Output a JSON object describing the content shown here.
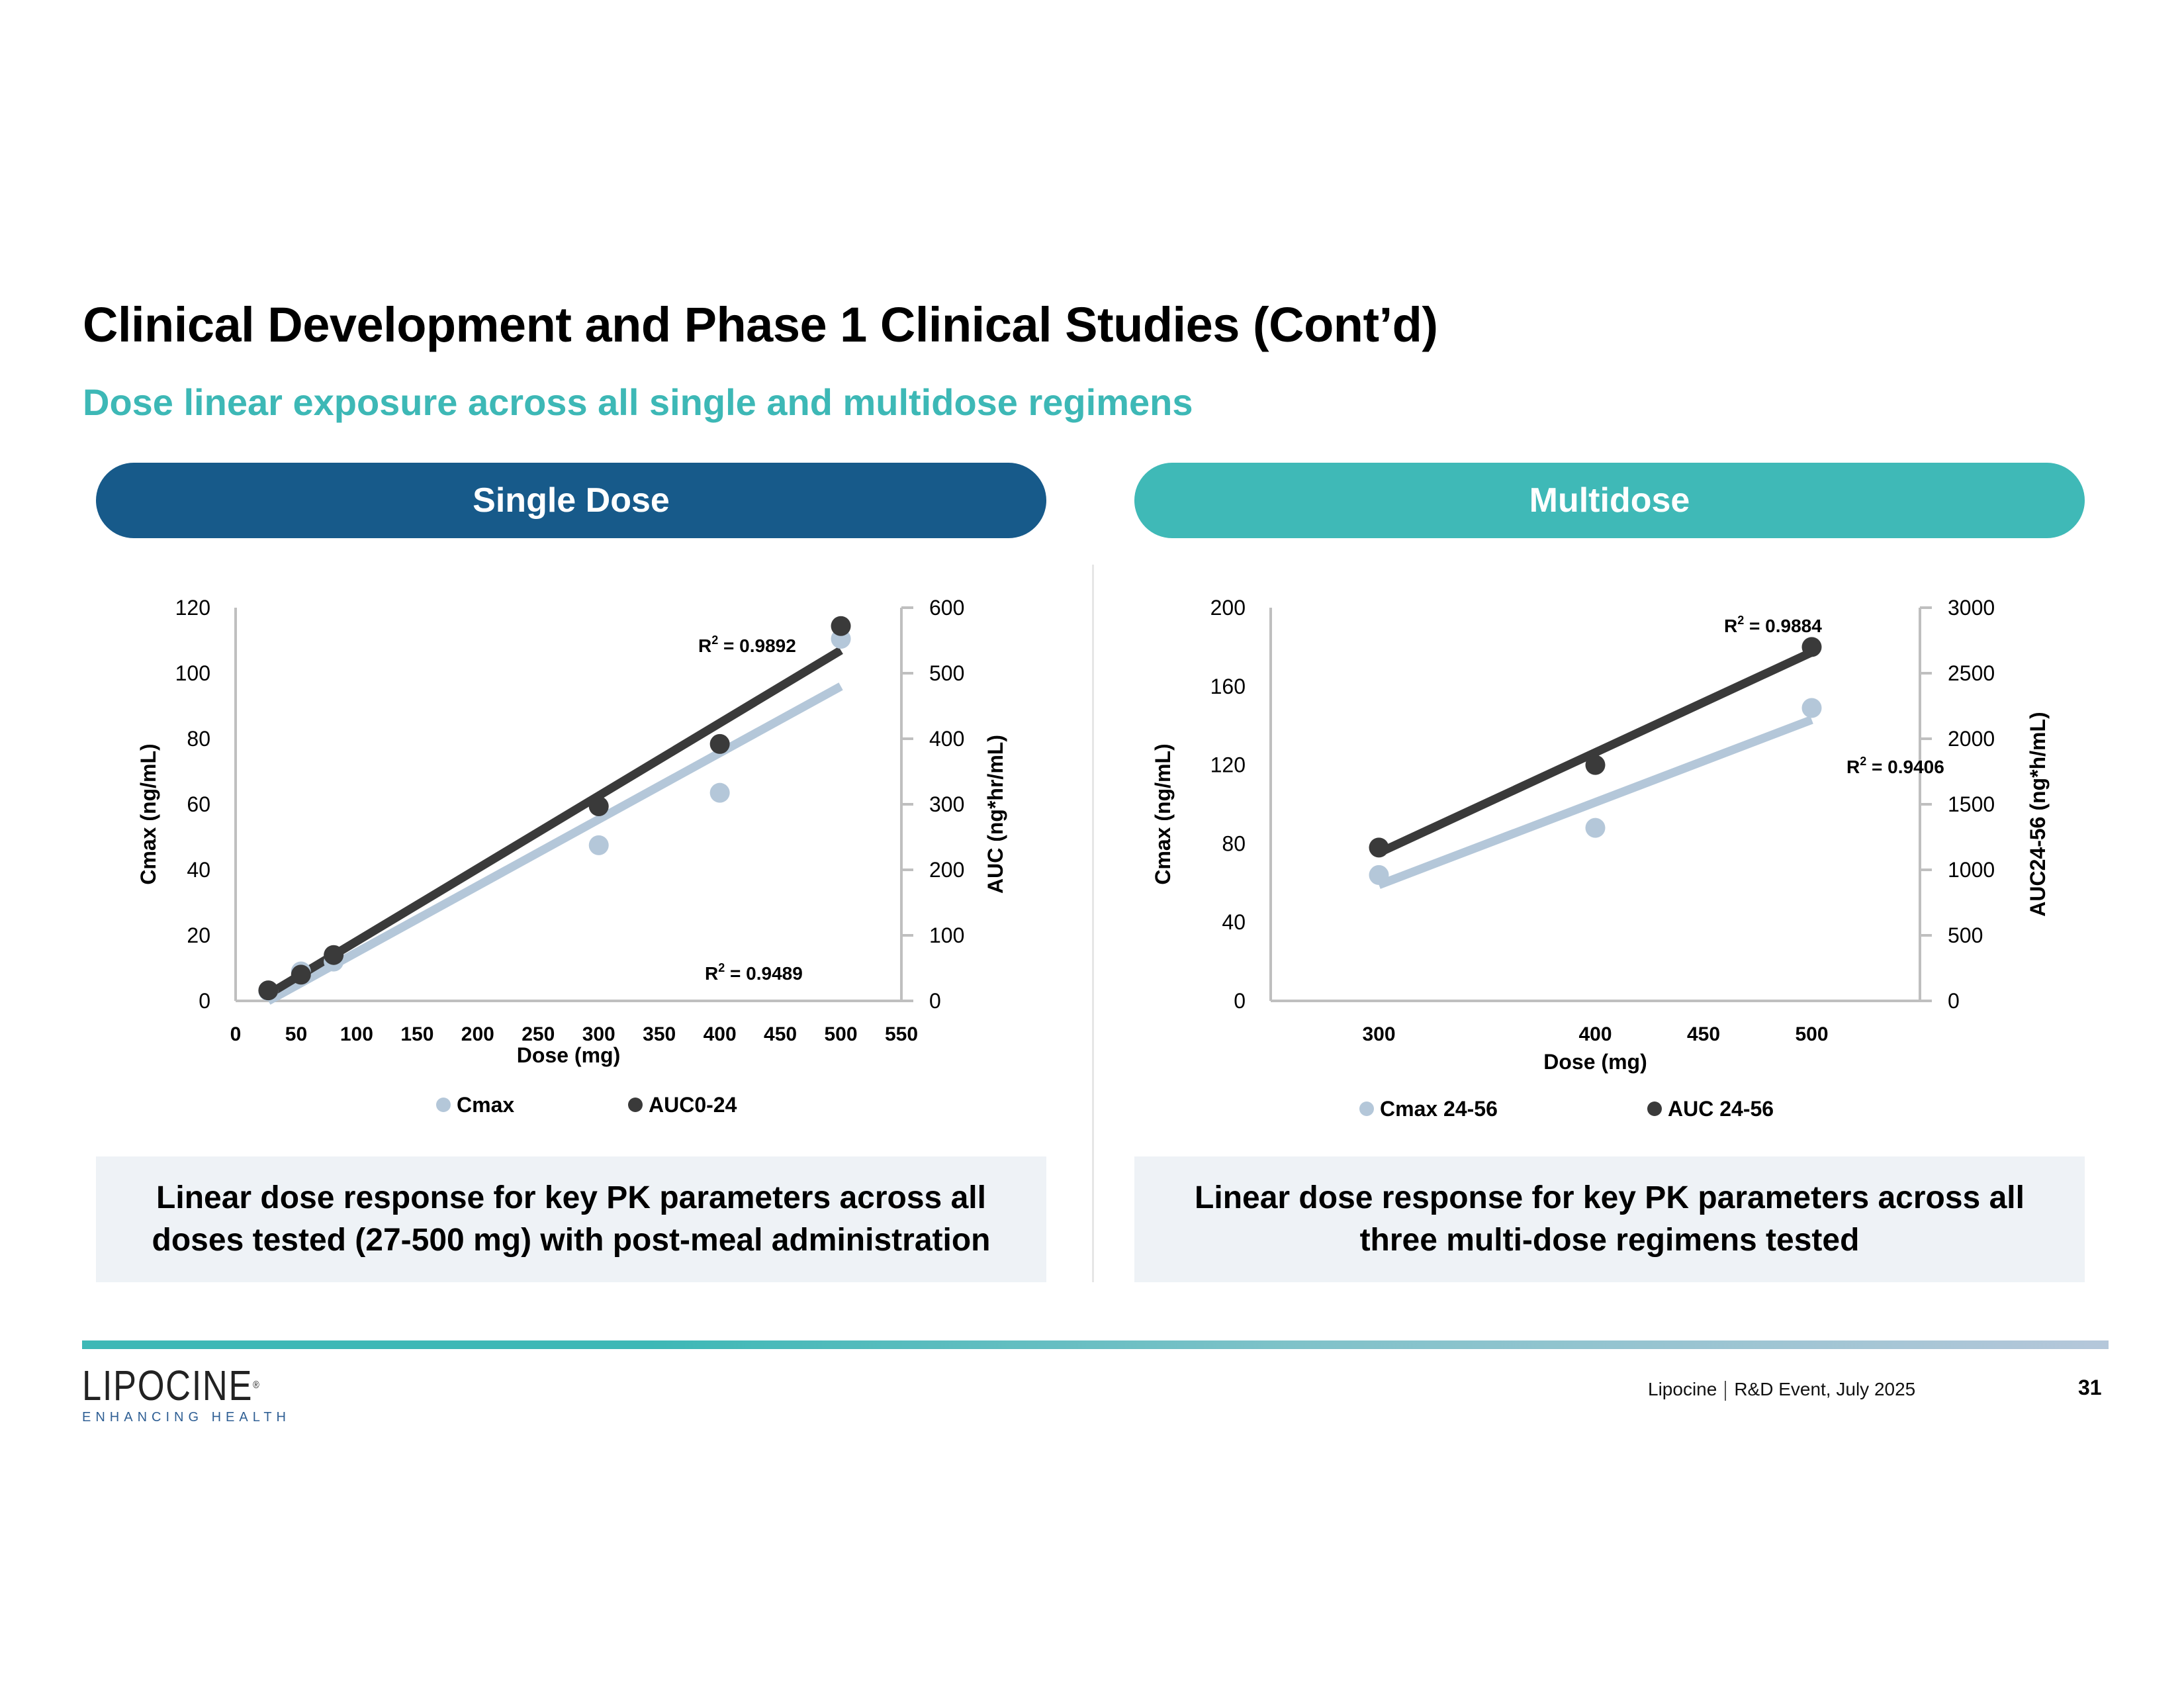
{
  "header": {
    "title": "Clinical Development and Phase 1 Clinical Studies (Cont’d)",
    "subtitle": "Dose linear exposure across all single and multidose regimens"
  },
  "panels": {
    "single": {
      "label": "Single Dose",
      "color": "#175a8a"
    },
    "multi": {
      "label": "Multidose",
      "color": "#3fb9b7"
    }
  },
  "captions": {
    "single": "Linear dose response for key PK parameters across all doses tested (27-500 mg) with post-meal administration",
    "multi": "Linear dose response for key PK parameters across all three multi-dose regimens tested"
  },
  "footer": {
    "logo_text": "LIPOCINE",
    "logo_tagline": "ENHANCING HEALTH",
    "company": "Lipocine",
    "event": "R&D Event, July 2025",
    "page_number": "31"
  },
  "chart_data": [
    {
      "type": "scatter",
      "title": "Single Dose",
      "xlabel": "Dose (mg)",
      "ylabel": "Cmax (ng/mL)",
      "y2label": "AUC (ng*hr/mL)",
      "xlim": [
        0,
        550
      ],
      "ylim": [
        0,
        120
      ],
      "y2lim": [
        0,
        600
      ],
      "xticks": [
        "0",
        "50",
        "100",
        "150",
        "200",
        "250",
        "300",
        "350",
        "400",
        "450",
        "500",
        "550"
      ],
      "xtick_values": [
        0,
        50,
        100,
        150,
        200,
        250,
        300,
        350,
        400,
        450,
        500,
        550
      ],
      "yticks": [
        "0",
        "20",
        "40",
        "60",
        "80",
        "100",
        "120"
      ],
      "ytick_values": [
        0,
        20,
        40,
        60,
        80,
        100,
        120
      ],
      "y2ticks": [
        "0",
        "100",
        "200",
        "300",
        "400",
        "500",
        "600"
      ],
      "y2tick_values": [
        0,
        100,
        200,
        300,
        400,
        500,
        600
      ],
      "grid": false,
      "legend": "bottom",
      "series": [
        {
          "name": "Cmax",
          "axis": "left",
          "color": "#b4c7d9",
          "x": [
            27,
            54,
            81,
            300,
            400,
            500
          ],
          "y": [
            3,
            9,
            12,
            47.5,
            63.5,
            110.5
          ],
          "trendline": {
            "x": [
              27,
              500
            ],
            "y": [
              0,
              96
            ],
            "r2_label": "R² = 0.9489"
          }
        },
        {
          "name": "AUC0-24",
          "axis": "right",
          "color": "#3a3a3a",
          "x": [
            27,
            54,
            81,
            300,
            400,
            500
          ],
          "y": [
            16,
            40,
            70,
            297,
            392,
            572
          ],
          "trendline": {
            "x": [
              27,
              500
            ],
            "y": [
              10,
              535
            ],
            "r2_label": "R² = 0.9892"
          }
        }
      ]
    },
    {
      "type": "scatter",
      "title": "Multidose",
      "xlabel": "Dose (mg)",
      "ylabel": "Cmax (ng/mL)",
      "y2label": "AUC24-56 (ng*h/mL)",
      "xlim": [
        250,
        550
      ],
      "ylim": [
        0,
        200
      ],
      "y2lim": [
        0,
        3000
      ],
      "xticks": [
        "300",
        "400",
        "450",
        "500"
      ],
      "xtick_values": [
        300,
        400,
        450,
        500
      ],
      "yticks": [
        "0",
        "40",
        "80",
        "120",
        "160",
        "200"
      ],
      "ytick_values": [
        0,
        40,
        80,
        120,
        160,
        200
      ],
      "y2ticks": [
        "0",
        "500",
        "1000",
        "1500",
        "2000",
        "2500",
        "3000"
      ],
      "y2tick_values": [
        0,
        500,
        1000,
        1500,
        2000,
        2500,
        3000
      ],
      "grid": false,
      "legend": "bottom",
      "series": [
        {
          "name": "Cmax 24-56",
          "axis": "left",
          "color": "#b4c7d9",
          "x": [
            300,
            400,
            500
          ],
          "y": [
            64,
            88,
            149
          ],
          "trendline": {
            "x": [
              300,
              500
            ],
            "y": [
              59,
              143
            ],
            "r2_label": "R² = 0.9406"
          }
        },
        {
          "name": "AUC 24-56",
          "axis": "right",
          "color": "#3a3a3a",
          "x": [
            300,
            400,
            500
          ],
          "y": [
            1170,
            1800,
            2700
          ],
          "trendline": {
            "x": [
              300,
              500
            ],
            "y": [
              1130,
              2660
            ],
            "r2_label": "R² = 0.9884"
          }
        }
      ]
    }
  ]
}
